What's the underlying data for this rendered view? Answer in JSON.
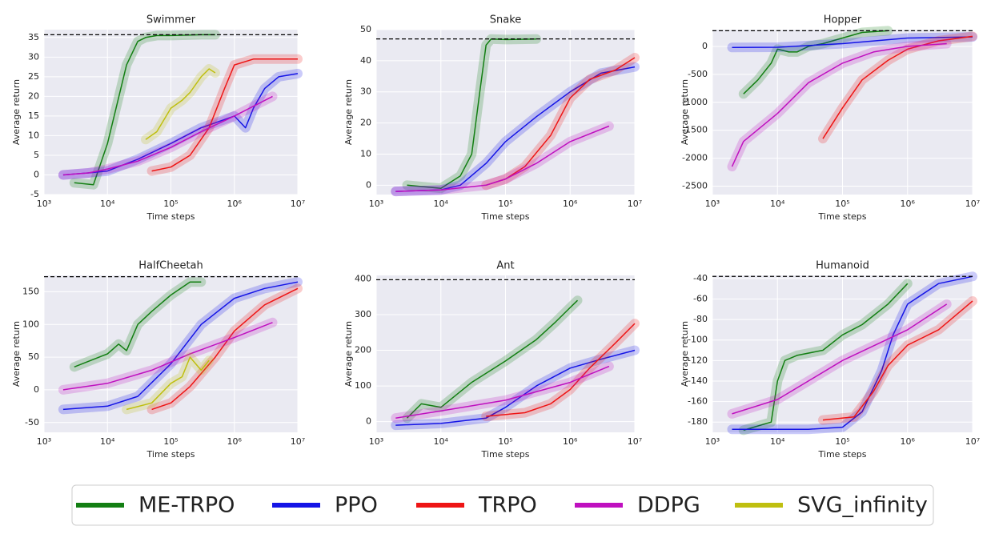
{
  "chart_data": [
    {
      "type": "line",
      "title": "Swimmer",
      "xlabel": "Time steps",
      "ylabel": "Average return",
      "xscale": "log",
      "xlim": [
        1000,
        10000000
      ],
      "xticks": [
        {
          "value": 1000,
          "label": "10³"
        },
        {
          "value": 10000,
          "label": "10⁴"
        },
        {
          "value": 100000,
          "label": "10⁵"
        },
        {
          "value": 1000000,
          "label": "10⁶"
        },
        {
          "value": 10000000,
          "label": "10⁷"
        }
      ],
      "ylim": [
        -5,
        37
      ],
      "yticks": [
        -5,
        0,
        5,
        10,
        15,
        20,
        25,
        30,
        35
      ],
      "grid": true,
      "reference_line": 35.7,
      "series": [
        {
          "name": "ME-TRPO",
          "color": "#137f13",
          "x": [
            3000,
            6000,
            10000,
            20000,
            30000,
            40000,
            60000,
            100000,
            300000,
            500000
          ],
          "values": [
            -2,
            -2.5,
            8,
            28,
            34,
            35,
            35.5,
            35.5,
            35.7,
            35.7
          ]
        },
        {
          "name": "PPO",
          "color": "#1414e6",
          "x": [
            2000,
            5000,
            10000,
            30000,
            100000,
            300000,
            1000000,
            1500000,
            2000000,
            3000000,
            5000000,
            10000000
          ],
          "values": [
            0,
            0.5,
            1,
            4,
            8,
            12,
            15,
            12,
            17,
            22,
            25,
            25.8
          ]
        },
        {
          "name": "TRPO",
          "color": "#ee1515",
          "x": [
            50000,
            100000,
            200000,
            400000,
            700000,
            1000000,
            2000000,
            5000000,
            10000000
          ],
          "values": [
            1,
            2,
            5,
            12,
            22,
            28,
            29.5,
            29.5,
            29.5
          ]
        },
        {
          "name": "DDPG",
          "color": "#bf10bf",
          "x": [
            2000,
            5000,
            10000,
            30000,
            100000,
            300000,
            1000000,
            4000000
          ],
          "values": [
            0,
            0.5,
            1.5,
            3.5,
            7,
            11,
            15,
            20
          ]
        },
        {
          "name": "SVG_infinity",
          "color": "#bfbf10",
          "x": [
            40000,
            60000,
            100000,
            150000,
            200000,
            300000,
            400000,
            500000
          ],
          "values": [
            9,
            11,
            17,
            19,
            21,
            25,
            27,
            26
          ]
        }
      ]
    },
    {
      "type": "line",
      "title": "Snake",
      "xlabel": "Time steps",
      "ylabel": "Average return",
      "xscale": "log",
      "xlim": [
        1000,
        10000000
      ],
      "xticks": [
        {
          "value": 1000,
          "label": "10³"
        },
        {
          "value": 10000,
          "label": "10⁴"
        },
        {
          "value": 100000,
          "label": "10⁵"
        },
        {
          "value": 1000000,
          "label": "10⁶"
        },
        {
          "value": 10000000,
          "label": "10⁷"
        }
      ],
      "ylim": [
        -3,
        50
      ],
      "yticks": [
        0,
        10,
        20,
        30,
        40,
        50
      ],
      "grid": true,
      "reference_line": 47,
      "series": [
        {
          "name": "ME-TRPO",
          "color": "#137f13",
          "x": [
            3000,
            10000,
            20000,
            30000,
            40000,
            50000,
            60000,
            100000,
            300000
          ],
          "values": [
            0,
            -1,
            3,
            10,
            30,
            45,
            47,
            46.8,
            47
          ]
        },
        {
          "name": "PPO",
          "color": "#1414e6",
          "x": [
            2000,
            10000,
            20000,
            50000,
            100000,
            300000,
            1000000,
            3000000,
            10000000
          ],
          "values": [
            -2,
            -1.5,
            0,
            7,
            14,
            22,
            30,
            36,
            38
          ]
        },
        {
          "name": "TRPO",
          "color": "#ee1515",
          "x": [
            50000,
            100000,
            200000,
            500000,
            1000000,
            2000000,
            5000000,
            10000000
          ],
          "values": [
            0,
            2,
            6,
            16,
            28,
            34,
            37,
            41
          ]
        },
        {
          "name": "DDPG",
          "color": "#bf10bf",
          "x": [
            2000,
            10000,
            50000,
            100000,
            300000,
            1000000,
            4000000
          ],
          "values": [
            -2,
            -1.5,
            0,
            2,
            7,
            14,
            19
          ]
        }
      ]
    },
    {
      "type": "line",
      "title": "Hopper",
      "xlabel": "Time steps",
      "ylabel": "Average return",
      "xscale": "log",
      "xlim": [
        1000,
        10000000
      ],
      "xticks": [
        {
          "value": 1000,
          "label": "10³"
        },
        {
          "value": 10000,
          "label": "10⁴"
        },
        {
          "value": 100000,
          "label": "10⁵"
        },
        {
          "value": 1000000,
          "label": "10⁶"
        },
        {
          "value": 10000000,
          "label": "10⁷"
        }
      ],
      "ylim": [
        -2650,
        300
      ],
      "yticks": [
        -2500,
        -2000,
        -1500,
        -1000,
        -500,
        0
      ],
      "grid": true,
      "reference_line": 280,
      "series": [
        {
          "name": "ME-TRPO",
          "color": "#137f13",
          "x": [
            3000,
            5000,
            8000,
            10000,
            15000,
            20000,
            30000,
            50000,
            100000,
            200000,
            500000
          ],
          "values": [
            -850,
            -600,
            -300,
            -50,
            -100,
            -100,
            0,
            50,
            150,
            250,
            280
          ]
        },
        {
          "name": "PPO",
          "color": "#1414e6",
          "x": [
            2000,
            10000,
            100000,
            1000000,
            10000000
          ],
          "values": [
            -20,
            -15,
            50,
            150,
            170
          ]
        },
        {
          "name": "TRPO",
          "color": "#ee1515",
          "x": [
            50000,
            100000,
            200000,
            500000,
            1000000,
            3000000,
            10000000
          ],
          "values": [
            -1650,
            -1100,
            -600,
            -250,
            -50,
            100,
            180
          ]
        },
        {
          "name": "DDPG",
          "color": "#bf10bf",
          "x": [
            2000,
            3000,
            10000,
            30000,
            100000,
            300000,
            1000000,
            4000000
          ],
          "values": [
            -2150,
            -1700,
            -1200,
            -650,
            -300,
            -100,
            0,
            50
          ]
        }
      ]
    },
    {
      "type": "line",
      "title": "HalfCheetah",
      "xlabel": "Time steps",
      "ylabel": "Average return",
      "xscale": "log",
      "xlim": [
        1000,
        10000000
      ],
      "xticks": [
        {
          "value": 1000,
          "label": "10³"
        },
        {
          "value": 10000,
          "label": "10⁴"
        },
        {
          "value": 100000,
          "label": "10⁵"
        },
        {
          "value": 1000000,
          "label": "10⁶"
        },
        {
          "value": 10000000,
          "label": "10⁷"
        }
      ],
      "ylim": [
        -65,
        175
      ],
      "yticks": [
        -50,
        0,
        50,
        100,
        150
      ],
      "grid": true,
      "reference_line": 173,
      "series": [
        {
          "name": "ME-TRPO",
          "color": "#137f13",
          "x": [
            3000,
            10000,
            15000,
            20000,
            30000,
            50000,
            100000,
            200000,
            300000
          ],
          "values": [
            35,
            55,
            70,
            60,
            100,
            120,
            145,
            165,
            165
          ]
        },
        {
          "name": "PPO",
          "color": "#1414e6",
          "x": [
            2000,
            10000,
            30000,
            100000,
            300000,
            1000000,
            3000000,
            10000000
          ],
          "values": [
            -30,
            -25,
            -10,
            40,
            100,
            140,
            155,
            165
          ]
        },
        {
          "name": "TRPO",
          "color": "#ee1515",
          "x": [
            50000,
            100000,
            200000,
            500000,
            1000000,
            3000000,
            10000000
          ],
          "values": [
            -30,
            -20,
            5,
            50,
            90,
            130,
            155
          ]
        },
        {
          "name": "DDPG",
          "color": "#bf10bf",
          "x": [
            2000,
            10000,
            50000,
            200000,
            1000000,
            4000000
          ],
          "values": [
            0,
            10,
            30,
            55,
            80,
            103
          ]
        },
        {
          "name": "SVG_infinity",
          "color": "#bfbf10",
          "x": [
            20000,
            50000,
            100000,
            150000,
            200000,
            300000,
            400000
          ],
          "values": [
            -30,
            -20,
            10,
            20,
            50,
            30,
            45
          ]
        }
      ]
    },
    {
      "type": "line",
      "title": "Ant",
      "xlabel": "Time steps",
      "ylabel": "Average return",
      "xscale": "log",
      "xlim": [
        1000,
        10000000
      ],
      "xticks": [
        {
          "value": 1000,
          "label": "10³"
        },
        {
          "value": 10000,
          "label": "10⁴"
        },
        {
          "value": 100000,
          "label": "10⁵"
        },
        {
          "value": 1000000,
          "label": "10⁶"
        },
        {
          "value": 10000000,
          "label": "10⁷"
        }
      ],
      "ylim": [
        -30,
        410
      ],
      "yticks": [
        0,
        100,
        200,
        300,
        400
      ],
      "grid": true,
      "reference_line": 398,
      "series": [
        {
          "name": "ME-TRPO",
          "color": "#137f13",
          "x": [
            3000,
            5000,
            10000,
            30000,
            100000,
            300000,
            600000,
            1000000,
            1300000
          ],
          "values": [
            10,
            50,
            40,
            110,
            170,
            230,
            280,
            320,
            340
          ]
        },
        {
          "name": "PPO",
          "color": "#1414e6",
          "x": [
            2000,
            10000,
            50000,
            100000,
            300000,
            1000000,
            3000000,
            10000000
          ],
          "values": [
            -10,
            -5,
            10,
            40,
            100,
            150,
            175,
            200
          ]
        },
        {
          "name": "TRPO",
          "color": "#ee1515",
          "x": [
            50000,
            200000,
            500000,
            1000000,
            2000000,
            5000000,
            10000000
          ],
          "values": [
            15,
            25,
            50,
            90,
            150,
            220,
            275
          ]
        },
        {
          "name": "DDPG",
          "color": "#bf10bf",
          "x": [
            2000,
            10000,
            100000,
            1000000,
            4000000
          ],
          "values": [
            10,
            30,
            60,
            110,
            155
          ]
        }
      ]
    },
    {
      "type": "line",
      "title": "Humanoid",
      "xlabel": "Time steps",
      "ylabel": "Average return",
      "xscale": "log",
      "xlim": [
        1000,
        10000000
      ],
      "xticks": [
        {
          "value": 1000,
          "label": "10³"
        },
        {
          "value": 10000,
          "label": "10⁴"
        },
        {
          "value": 100000,
          "label": "10⁵"
        },
        {
          "value": 1000000,
          "label": "10⁶"
        },
        {
          "value": 10000000,
          "label": "10⁷"
        }
      ],
      "ylim": [
        -190,
        -37
      ],
      "yticks": [
        -180,
        -160,
        -140,
        -120,
        -100,
        -80,
        -60,
        -40
      ],
      "grid": true,
      "reference_line": -38,
      "series": [
        {
          "name": "ME-TRPO",
          "color": "#137f13",
          "x": [
            3000,
            8000,
            10000,
            13000,
            20000,
            50000,
            100000,
            200000,
            500000,
            1000000
          ],
          "values": [
            -188,
            -180,
            -140,
            -120,
            -115,
            -110,
            -95,
            -85,
            -65,
            -45
          ]
        },
        {
          "name": "PPO",
          "color": "#1414e6",
          "x": [
            2000,
            30000,
            100000,
            200000,
            400000,
            600000,
            1000000,
            3000000,
            10000000
          ],
          "values": [
            -187,
            -187,
            -185,
            -170,
            -130,
            -95,
            -65,
            -45,
            -38
          ]
        },
        {
          "name": "TRPO",
          "color": "#ee1515",
          "x": [
            50000,
            150000,
            300000,
            500000,
            1000000,
            3000000,
            10000000
          ],
          "values": [
            -178,
            -175,
            -150,
            -125,
            -105,
            -90,
            -62
          ]
        },
        {
          "name": "DDPG",
          "color": "#bf10bf",
          "x": [
            2000,
            10000,
            100000,
            1000000,
            4000000
          ],
          "values": [
            -172,
            -158,
            -120,
            -90,
            -65
          ]
        }
      ]
    }
  ]
}
